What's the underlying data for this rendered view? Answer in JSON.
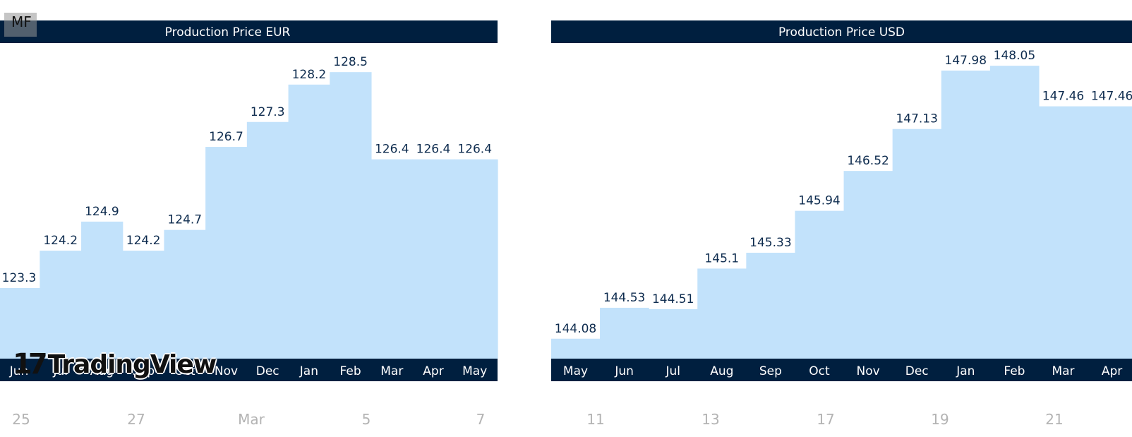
{
  "watermark_text": "MF",
  "brand": {
    "name": "TradingView",
    "mark": "17"
  },
  "date_axis": [
    "25",
    "27",
    "Mar",
    "5",
    "7",
    "11",
    "13",
    "17",
    "19",
    "21"
  ],
  "chart_data": [
    {
      "type": "bar",
      "title": "Production Price EUR",
      "categories": [
        "Jun",
        "Jul",
        "Aug",
        "Sep",
        "Oct",
        "Nov",
        "Dec",
        "Jan",
        "Feb",
        "Mar",
        "Apr",
        "May"
      ],
      "values": [
        123.3,
        124.2,
        124.9,
        124.2,
        124.7,
        126.7,
        127.3,
        128.2,
        128.5,
        126.4,
        126.4,
        126.4
      ],
      "ylim": [
        121.6,
        129.2
      ],
      "colors": {
        "bar": "#c2e2fb",
        "header": "#001f3f",
        "label": "#0d2b4e",
        "axis_text": "#ffffff"
      }
    },
    {
      "type": "bar",
      "title": "Production Price USD",
      "categories": [
        "May",
        "Jun",
        "Jul",
        "Aug",
        "Sep",
        "Oct",
        "Nov",
        "Dec",
        "Jan",
        "Feb",
        "Mar",
        "Apr"
      ],
      "values": [
        144.08,
        144.53,
        144.51,
        145.1,
        145.33,
        145.94,
        146.52,
        147.13,
        147.98,
        148.05,
        147.46,
        147.46
      ],
      "ylim": [
        143.79,
        148.38
      ],
      "colors": {
        "bar": "#c2e2fb",
        "header": "#001f3f",
        "label": "#0d2b4e",
        "axis_text": "#ffffff"
      }
    }
  ]
}
